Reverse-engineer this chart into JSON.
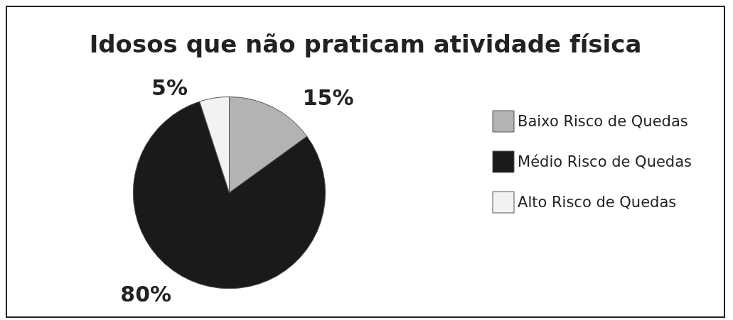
{
  "chart_data": {
    "type": "pie",
    "title": "Idosos que não praticam atividade física",
    "categories": [
      "Baixo Risco de Quedas",
      "Médio Risco de Quedas",
      "Alto Risco de Quedas"
    ],
    "values": [
      15,
      80,
      5
    ],
    "colors": [
      "#b3b3b3",
      "#1a1a1a",
      "#f2f2f2"
    ],
    "value_labels": [
      "15%",
      "80%",
      "5%"
    ],
    "legend": "right"
  }
}
